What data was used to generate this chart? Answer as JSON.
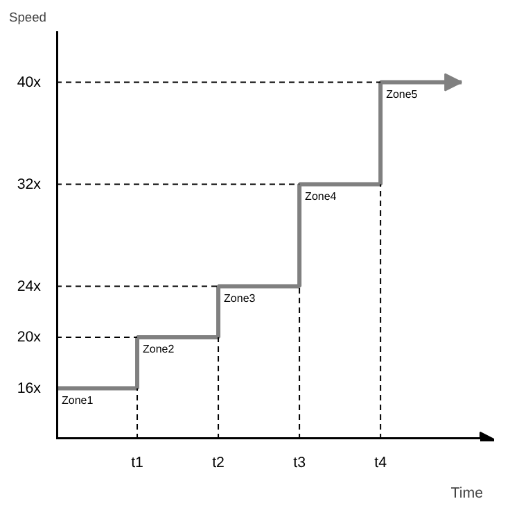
{
  "chart_data": {
    "type": "step",
    "xlabel": "Time",
    "ylabel": "Speed",
    "categories": [
      null,
      "t1",
      "t2",
      "t3",
      "t4",
      null
    ],
    "series": [
      {
        "color": "#808080",
        "values": [
          16,
          20,
          24,
          32,
          40,
          40
        ]
      }
    ],
    "ylim": [
      12,
      44
    ],
    "yticks": [
      {
        "value": 16,
        "label": "16x"
      },
      {
        "value": 20,
        "label": "20x"
      },
      {
        "value": 24,
        "label": "24x"
      },
      {
        "value": 32,
        "label": "32x"
      },
      {
        "value": 40,
        "label": "40x"
      }
    ],
    "ref_lines": [
      {
        "axis": "y",
        "value": 20,
        "line_style": "dashed",
        "color": "#000000"
      },
      {
        "axis": "y",
        "value": 24,
        "line_style": "dashed",
        "color": "#000000"
      },
      {
        "axis": "y",
        "value": 32,
        "line_style": "dashed",
        "color": "#000000"
      },
      {
        "axis": "y",
        "value": 40,
        "line_style": "dashed",
        "color": "#000000"
      },
      {
        "axis": "x",
        "value": "t1",
        "line_style": "dashed",
        "color": "#000000"
      },
      {
        "axis": "x",
        "value": "t2",
        "line_style": "dashed",
        "color": "#000000"
      },
      {
        "axis": "x",
        "value": "t3",
        "line_style": "dashed",
        "color": "#000000"
      },
      {
        "axis": "x",
        "value": "t4",
        "line_style": "dashed",
        "color": "#000000"
      }
    ],
    "annotations": [
      {
        "text": "Zone1",
        "y": 16
      },
      {
        "text": "Zone2",
        "x": "t1",
        "y": 20
      },
      {
        "text": "Zone3",
        "x": "t2",
        "y": 24
      },
      {
        "text": "Zone4",
        "x": "t3",
        "y": 32
      },
      {
        "text": "Zone5",
        "x": "t4",
        "y": 40
      }
    ]
  }
}
